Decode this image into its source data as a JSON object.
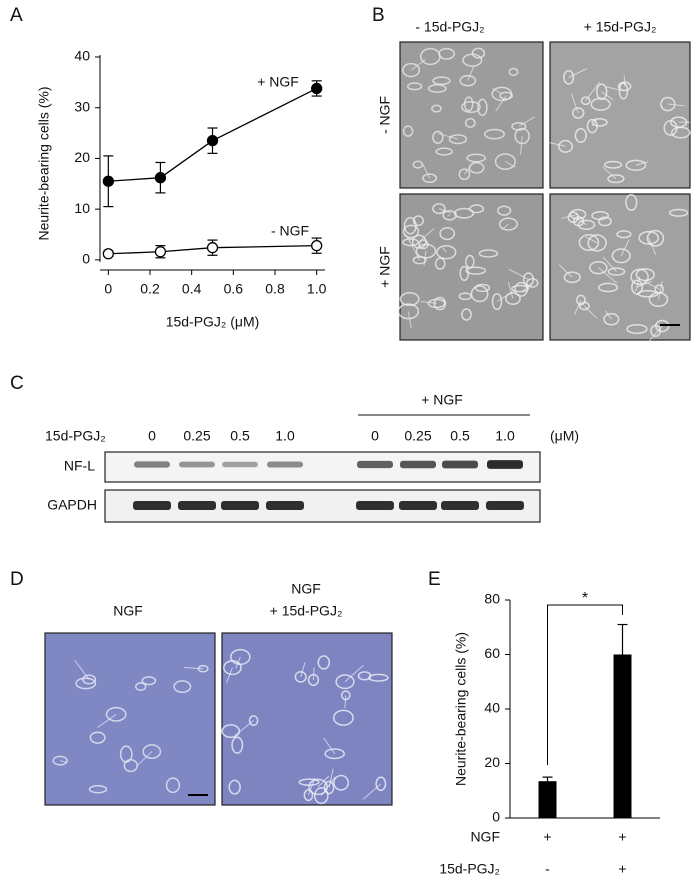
{
  "chart_data": [
    {
      "type": "line",
      "xlabel": "15d-PGJ₂ (μM)",
      "ylabel": "Neurite-bearing cells (%)",
      "x": [
        0,
        0.25,
        0.5,
        1.0
      ],
      "series": [
        {
          "name": "+ NGF",
          "color": "#000000",
          "marker": "filled",
          "values": [
            15.5,
            16.2,
            23.5,
            33.8
          ],
          "errors": [
            5,
            3,
            2.5,
            1.5
          ]
        },
        {
          "name": "- NGF",
          "color": "#000000",
          "marker": "open",
          "values": [
            1.2,
            1.6,
            2.4,
            2.8
          ],
          "errors": [
            0.5,
            1.2,
            1.5,
            1.5
          ]
        }
      ],
      "xlim": [
        -0.04,
        1.04
      ],
      "xticks": [
        0,
        0.2,
        0.4,
        0.6,
        0.8,
        {
          "value": 1,
          "label": "1.0"
        }
      ],
      "ylim": [
        -2,
        40
      ],
      "yticks": [
        0,
        10,
        20,
        30,
        40
      ]
    },
    {
      "type": "bar",
      "ylabel": "Neurite-bearing cells (%)",
      "conditions": [
        {
          "name": "NGF",
          "labels": [
            "+",
            "+"
          ]
        },
        {
          "name": "15d-PGJ₂",
          "labels": [
            "-",
            "+"
          ]
        }
      ],
      "values": [
        13.5,
        60
      ],
      "errors": [
        1.5,
        11
      ],
      "color": "#000000",
      "annotation": "*",
      "ylim": [
        0,
        80
      ],
      "yticks": [
        0,
        20,
        40,
        60,
        80
      ]
    }
  ],
  "panel_labels": [
    "A",
    "B",
    "C",
    "D",
    "E"
  ],
  "micrograph_b": {
    "columns": [
      "- 15d-PGJ₂",
      "+ 15d-PGJ₂"
    ],
    "rows": [
      "- NGF",
      "+ NGF"
    ]
  },
  "blot": {
    "treatment_label": "15d-PGJ₂",
    "group_label": "+ NGF",
    "doses": [
      "0",
      "0.25",
      "0.5",
      "1.0",
      "0",
      "0.25",
      "0.5",
      "1.0"
    ],
    "unit": "(μM)",
    "rows": [
      "NF-L",
      "GAPDH"
    ]
  },
  "micrograph_d": {
    "columns": [
      [
        "NGF"
      ],
      [
        "NGF",
        "+ 15d-PGJ₂"
      ]
    ]
  }
}
